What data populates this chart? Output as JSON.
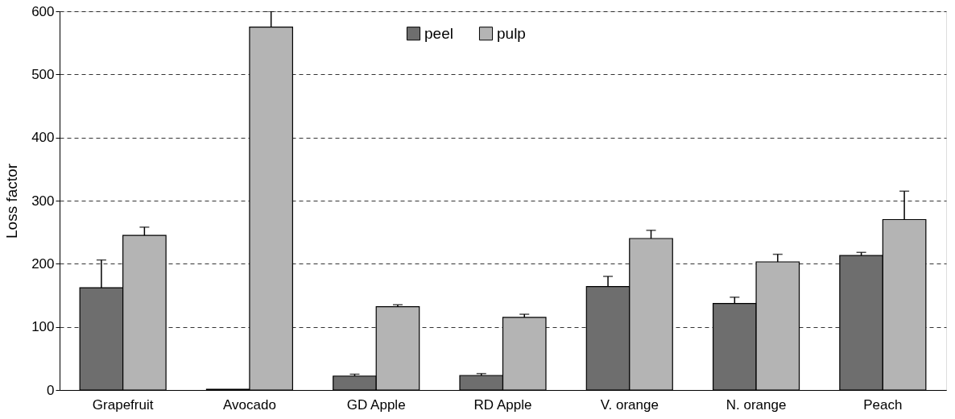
{
  "chart_data": {
    "type": "bar",
    "ylabel": "Loss factor",
    "categories": [
      "Grapefruit",
      "Avocado",
      "GD Apple",
      "RD Apple",
      "V. orange",
      "N. orange",
      "Peach"
    ],
    "series": [
      {
        "name": "peel",
        "color": "#6e6e6e",
        "values": [
          162,
          1,
          22,
          23,
          164,
          137,
          213
        ],
        "errors": [
          [
            162,
            206
          ],
          null,
          [
            22,
            25
          ],
          [
            23,
            26
          ],
          [
            164,
            180
          ],
          [
            137,
            147
          ],
          [
            213,
            218
          ]
        ]
      },
      {
        "name": "pulp",
        "color": "#b4b4b4",
        "values": [
          245,
          575,
          132,
          115,
          240,
          203,
          270
        ],
        "errors": [
          [
            245,
            258
          ],
          [
            575,
            600
          ],
          [
            132,
            135
          ],
          [
            115,
            120
          ],
          [
            240,
            253
          ],
          [
            203,
            215
          ],
          [
            270,
            315
          ]
        ]
      }
    ],
    "ylim": [
      0,
      600
    ],
    "yticks": [
      0,
      100,
      200,
      300,
      400,
      500,
      600
    ],
    "grid": "y",
    "legend": "top"
  }
}
